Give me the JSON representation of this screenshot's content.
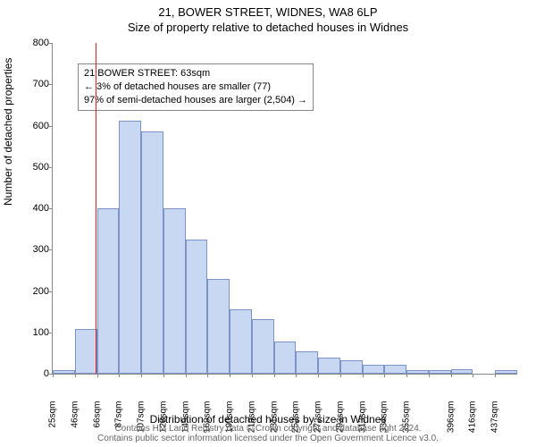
{
  "header": {
    "title1": "21, BOWER STREET, WIDNES, WA8 6LP",
    "title2": "Size of property relative to detached houses in Widnes"
  },
  "axes": {
    "ylabel": "Number of detached properties",
    "xlabel": "Distribution of detached houses by size in Widnes"
  },
  "footer": {
    "line1": "Contains HM Land Registry data © Crown copyright and database right 2024.",
    "line2": "Contains public sector information licensed under the Open Government Licence v3.0."
  },
  "annotation": {
    "line1": "21 BOWER STREET: 63sqm",
    "line2": "← 3% of detached houses are smaller (77)",
    "line3": "97% of semi-detached houses are larger (2,504) →"
  },
  "chart": {
    "type": "histogram",
    "ylim": [
      0,
      800
    ],
    "ytick_step": 100,
    "xticks": [
      "25sqm",
      "46sqm",
      "66sqm",
      "87sqm",
      "107sqm",
      "128sqm",
      "149sqm",
      "169sqm",
      "190sqm",
      "210sqm",
      "231sqm",
      "252sqm",
      "272sqm",
      "293sqm",
      "313sqm",
      "334sqm",
      "355sqm",
      "",
      "396sqm",
      "416sqm",
      "437sqm"
    ],
    "x_range": [
      25,
      437
    ],
    "bar_values": [
      8,
      108,
      400,
      612,
      585,
      400,
      325,
      230,
      155,
      132,
      78,
      55,
      38,
      32,
      22,
      22,
      8,
      8,
      10,
      0,
      8
    ],
    "bar_color": "#c9d8f2",
    "bar_border": "#7a94c8",
    "marker_x": 63,
    "marker_color": "#e02020",
    "background_color": "#ffffff",
    "axis_color": "#888888",
    "tick_font_size": 11
  }
}
